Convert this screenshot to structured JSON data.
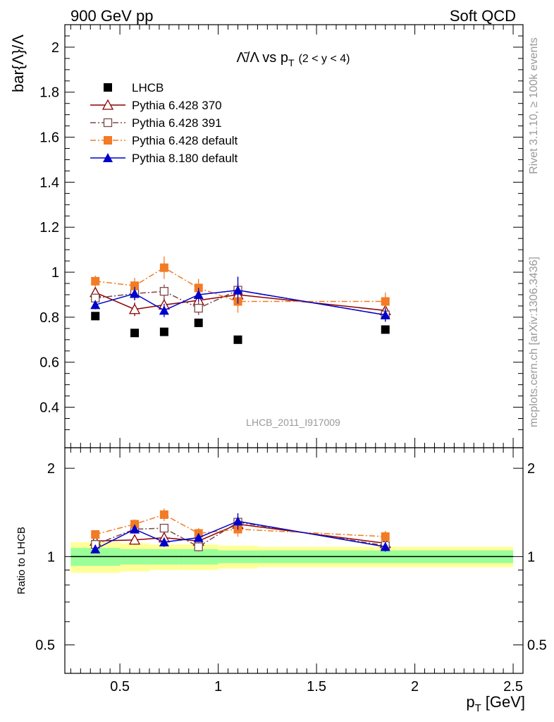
{
  "header": {
    "left": "900 GeV pp",
    "right": "Soft QCD"
  },
  "side_labels": {
    "rivet": "Rivet 3.1.10, ≥ 100k events",
    "mcplots": "mcplots.cern.ch [arXiv:1306.3436]"
  },
  "chart_data": {
    "type": "scatter",
    "title_main": "Λ̄/Λ vs p",
    "title_sub": "T",
    "title_tail": "(2 < y < 4)",
    "ylabel": "bar{Λ}/Λ",
    "xlabel": "p",
    "xlabel_sub": "T",
    "xlabel_unit": "[GeV]",
    "watermark": "LHCB_2011_I917009",
    "xlim": [
      0.22,
      2.55
    ],
    "ylim": [
      0.22,
      2.1
    ],
    "yticks": [
      0.4,
      0.6,
      0.8,
      1,
      1.2,
      1.4,
      1.6,
      1.8,
      2
    ],
    "yticklabels": [
      "0.4",
      "0.6",
      "0.8",
      "1",
      "1.2",
      "1.4",
      "1.6",
      "1.8",
      "2"
    ],
    "xticks": [
      0.5,
      1,
      1.5,
      2,
      2.5
    ],
    "xticklabels": [
      "0.5",
      "1",
      "1.5",
      "2",
      "2.5"
    ],
    "ratio": {
      "ylabel": "Ratio to LHCB",
      "log": true,
      "ylim": [
        0.4,
        2.35
      ],
      "yticks": [
        0.5,
        1,
        2
      ],
      "yticklabels": [
        "0.5",
        "1",
        "2"
      ],
      "band": [
        {
          "x0": 0.25,
          "x1": 0.5,
          "inner": 0.07,
          "outer": 0.12
        },
        {
          "x0": 0.5,
          "x1": 0.65,
          "inner": 0.06,
          "outer": 0.11
        },
        {
          "x0": 0.65,
          "x1": 0.8,
          "inner": 0.06,
          "outer": 0.1
        },
        {
          "x0": 0.8,
          "x1": 1.0,
          "inner": 0.06,
          "outer": 0.1
        },
        {
          "x0": 1.0,
          "x1": 1.2,
          "inner": 0.05,
          "outer": 0.09
        },
        {
          "x0": 1.2,
          "x1": 2.5,
          "inner": 0.05,
          "outer": 0.08
        }
      ]
    },
    "series": [
      {
        "name": "LHCB",
        "color": "#000000",
        "marker": "square-filled",
        "dash": "",
        "line": false,
        "x": [
          0.375,
          0.575,
          0.725,
          0.9,
          1.1,
          1.85
        ],
        "y": [
          0.805,
          0.73,
          0.735,
          0.775,
          0.7,
          0.745
        ],
        "err": [
          0.005,
          0.005,
          0.005,
          0.005,
          0.005,
          0.005
        ]
      },
      {
        "name": "Pythia 6.428 370",
        "color": "#8b0000",
        "marker": "triangle-open",
        "dash": "",
        "line": true,
        "x": [
          0.375,
          0.575,
          0.725,
          0.9,
          1.1,
          1.85
        ],
        "y": [
          0.91,
          0.835,
          0.855,
          0.875,
          0.9,
          0.83
        ],
        "err": [
          0.02,
          0.03,
          0.03,
          0.03,
          0.05,
          0.03
        ],
        "ratio": [
          1.13,
          1.14,
          1.16,
          1.13,
          1.29,
          1.11
        ]
      },
      {
        "name": "Pythia 6.428 391",
        "color": "#7a4a4a",
        "marker": "square-open",
        "dash": "8,3,2,3",
        "line": true,
        "x": [
          0.375,
          0.575,
          0.725,
          0.9,
          1.1,
          1.85
        ],
        "y": [
          0.885,
          0.905,
          0.915,
          0.84,
          0.92,
          0.81
        ],
        "err": [
          0.02,
          0.03,
          0.03,
          0.03,
          0.06,
          0.03
        ],
        "ratio": [
          1.1,
          1.24,
          1.25,
          1.08,
          1.31,
          1.09
        ]
      },
      {
        "name": "Pythia 6.428 default",
        "color": "#f27b24",
        "marker": "square-filled",
        "dash": "8,3,2,3",
        "line": true,
        "x": [
          0.375,
          0.575,
          0.725,
          0.9,
          1.1,
          1.85
        ],
        "y": [
          0.96,
          0.94,
          1.02,
          0.93,
          0.87,
          0.87
        ],
        "err": [
          0.025,
          0.035,
          0.05,
          0.04,
          0.05,
          0.04
        ],
        "ratio": [
          1.19,
          1.29,
          1.39,
          1.2,
          1.24,
          1.17
        ]
      },
      {
        "name": "Pythia 8.180 default",
        "color": "#0000cc",
        "marker": "triangle-filled",
        "dash": "",
        "line": true,
        "x": [
          0.375,
          0.575,
          0.725,
          0.9,
          1.1,
          1.85
        ],
        "y": [
          0.855,
          0.905,
          0.83,
          0.9,
          0.92,
          0.81
        ],
        "err": [
          0.02,
          0.03,
          0.03,
          0.03,
          0.06,
          0.03
        ],
        "ratio": [
          1.06,
          1.24,
          1.12,
          1.16,
          1.32,
          1.08
        ]
      }
    ]
  }
}
